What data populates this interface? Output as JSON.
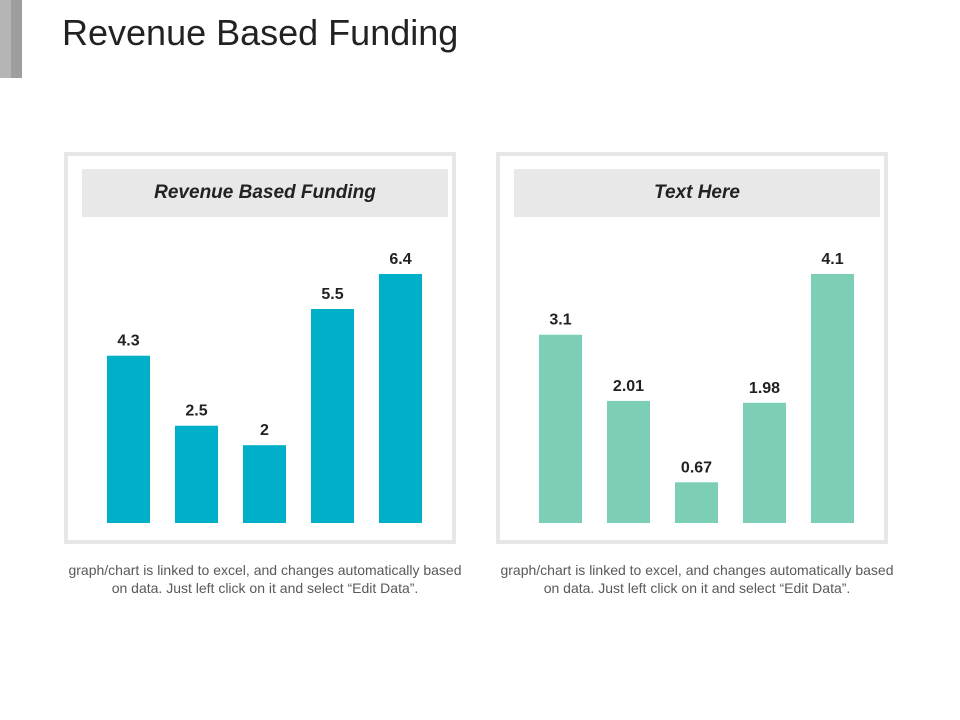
{
  "slide": {
    "title": "Revenue Based Funding",
    "caption_text": "graph/chart is linked to excel, and changes automatically based on data. Just left click on it and select “Edit Data”."
  },
  "colors": {
    "bar_left": "#00b0c8",
    "bar_right": "#7ccfb6",
    "label": "#222222"
  },
  "chart_data": [
    {
      "type": "bar",
      "title": "Revenue Based Funding",
      "categories": [
        "",
        "",
        "",
        "",
        ""
      ],
      "values": [
        4.3,
        2.5,
        2,
        5.5,
        6.4
      ],
      "data_labels": [
        "4.3",
        "2.5",
        "2",
        "5.5",
        "6.4"
      ],
      "xlabel": "",
      "ylabel": "",
      "ylim": [
        0,
        6.4
      ],
      "grid": false,
      "legend": "none"
    },
    {
      "type": "bar",
      "title": "Text Here",
      "categories": [
        "",
        "",
        "",
        "",
        ""
      ],
      "values": [
        3.1,
        2.01,
        0.67,
        1.98,
        4.1
      ],
      "data_labels": [
        "3.1",
        "2.01",
        "0.67",
        "1.98",
        "4.1"
      ],
      "xlabel": "",
      "ylabel": "",
      "ylim": [
        0,
        4.1
      ],
      "grid": false,
      "legend": "none"
    }
  ]
}
